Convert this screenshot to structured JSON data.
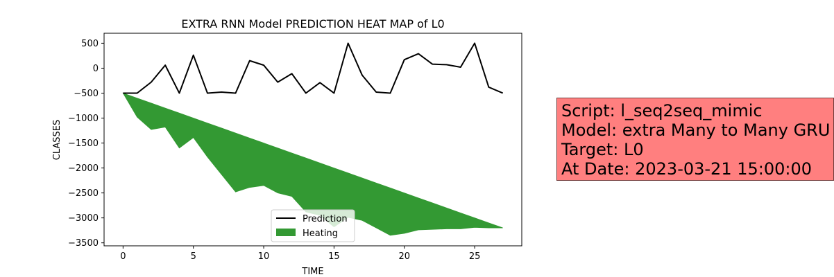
{
  "chart_data": {
    "type": "line",
    "title": "EXTRA RNN Model PREDICTION HEAT MAP of L0",
    "xlabel": "TIME",
    "ylabel": "CLASSES",
    "xlim": [
      -1.35,
      28.35
    ],
    "ylim": [
      -3560,
      700
    ],
    "xticks": [
      0,
      5,
      10,
      15,
      20,
      25
    ],
    "yticks": [
      -3500,
      -3000,
      -2500,
      -2000,
      -1500,
      -1000,
      -500,
      0,
      500
    ],
    "grid": false,
    "legend_position": "lower-center",
    "series": [
      {
        "name": "Prediction",
        "color": "#000000",
        "x": [
          0,
          1,
          2,
          3,
          4,
          5,
          6,
          7,
          8,
          9,
          10,
          11,
          12,
          13,
          14,
          15,
          16,
          17,
          18,
          19,
          20,
          21,
          22,
          23,
          24,
          25,
          26,
          27
        ],
        "y": [
          -500,
          -500,
          -280,
          60,
          -500,
          260,
          -500,
          -480,
          -500,
          150,
          60,
          -280,
          -110,
          -500,
          -290,
          -500,
          500,
          -140,
          -480,
          -500,
          170,
          290,
          80,
          70,
          20,
          500,
          -380,
          -500
        ]
      }
    ],
    "fill_between": {
      "name": "Heating",
      "color": "#339933",
      "x": [
        0,
        1,
        2,
        3,
        4,
        5,
        6,
        7,
        8,
        9,
        10,
        11,
        12,
        13,
        14,
        15,
        16,
        17,
        18,
        19,
        20,
        21,
        22,
        23,
        24,
        25,
        26,
        27
      ],
      "y_upper": [
        -500,
        -600,
        -700,
        -800,
        -900,
        -1000,
        -1100,
        -1200,
        -1300,
        -1400,
        -1500,
        -1600,
        -1700,
        -1800,
        -1900,
        -2000,
        -2100,
        -2200,
        -2300,
        -2400,
        -2500,
        -2600,
        -2700,
        -2800,
        -2900,
        -3000,
        -3100,
        -3200
      ],
      "y_lower": [
        -500,
        -980,
        -1230,
        -1180,
        -1600,
        -1390,
        -1780,
        -2130,
        -2480,
        -2390,
        -2350,
        -2500,
        -2570,
        -2880,
        -2950,
        -3180,
        -2990,
        -3050,
        -3200,
        -3350,
        -3310,
        -3240,
        -3230,
        -3220,
        -3220,
        -3190,
        -3200,
        -3200
      ]
    }
  },
  "info_box": {
    "lines": [
      "Script: l_seq2seq_mimic",
      "Model: extra Many to Many GRU",
      "Target: L0",
      "At Date: 2023-03-21 15:00:00"
    ],
    "background": "#ff7f7f"
  }
}
